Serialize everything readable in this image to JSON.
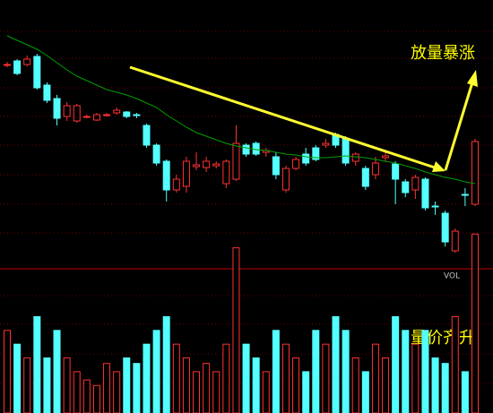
{
  "chart_data": {
    "type": "candlestick",
    "annotations": [
      "放量暴涨",
      "量价齐升"
    ],
    "volume_label": "VOL",
    "up_color": "#ff3232",
    "down_color": "#54ffff",
    "ma_color": "#00a000",
    "ylim": [
      0,
      300
    ],
    "vol_ylim": [
      0,
      150
    ],
    "open": [
      228,
      232,
      228,
      237,
      205,
      190,
      170,
      165,
      170,
      166,
      172,
      174,
      175,
      172,
      160,
      138,
      120,
      88,
      92,
      114,
      113,
      115,
      95,
      100,
      138,
      140,
      130,
      125,
      88,
      112,
      128,
      135,
      138,
      150,
      145,
      120,
      112,
      105,
      124,
      117,
      97,
      88,
      100,
      70,
      62,
      20,
      83,
      72
    ],
    "close": [
      228,
      218,
      234,
      202,
      188,
      168,
      182,
      182,
      170,
      172,
      172,
      177,
      170,
      171,
      138,
      118,
      88,
      100,
      120,
      116,
      120,
      117,
      120,
      140,
      128,
      128,
      132,
      105,
      112,
      122,
      118,
      122,
      140,
      138,
      118,
      128,
      92,
      118,
      126,
      100,
      85,
      102,
      68,
      69,
      30,
      42,
      82,
      142
    ],
    "high": [
      231,
      234,
      238,
      240,
      208,
      194,
      186,
      184,
      172,
      174,
      174,
      180,
      176,
      174,
      162,
      140,
      122,
      105,
      125,
      130,
      125,
      120,
      122,
      160,
      140,
      142,
      135,
      130,
      115,
      125,
      135,
      138,
      145,
      152,
      148,
      130,
      115,
      125,
      130,
      120,
      100,
      105,
      102,
      75,
      65,
      45,
      90,
      145
    ],
    "low": [
      225,
      216,
      226,
      200,
      185,
      160,
      165,
      163,
      168,
      165,
      170,
      172,
      168,
      168,
      135,
      115,
      75,
      85,
      85,
      110,
      108,
      112,
      90,
      98,
      125,
      126,
      125,
      100,
      85,
      110,
      115,
      120,
      135,
      135,
      115,
      115,
      88,
      100,
      120,
      72,
      80,
      78,
      65,
      60,
      25,
      18,
      70,
      70
    ],
    "ma": [
      260,
      255,
      250,
      245,
      238,
      230,
      222,
      215,
      210,
      205,
      200,
      197,
      194,
      190,
      185,
      180,
      172,
      165,
      158,
      152,
      148,
      144,
      140,
      137,
      135,
      133,
      132,
      130,
      128,
      127,
      125,
      124,
      124,
      125,
      126,
      125,
      124,
      122,
      120,
      118,
      115,
      112,
      108,
      105,
      102,
      100,
      97,
      95
    ],
    "volume": [
      30,
      25,
      20,
      35,
      20,
      30,
      20,
      15,
      12,
      10,
      18,
      15,
      20,
      18,
      25,
      30,
      35,
      25,
      20,
      15,
      18,
      15,
      25,
      60,
      25,
      20,
      15,
      30,
      25,
      20,
      15,
      30,
      25,
      35,
      30,
      20,
      15,
      25,
      20,
      35,
      30,
      25,
      30,
      20,
      18,
      35,
      15,
      65
    ]
  }
}
